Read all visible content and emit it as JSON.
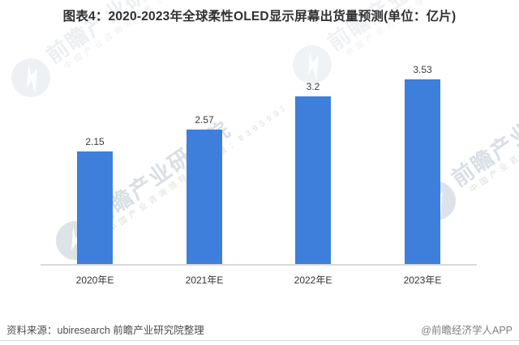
{
  "title": "图表4：2020-2023年全球柔性OLED显示屏幕出货量预测(单位：亿片)",
  "chart_data": {
    "type": "bar",
    "title": "图表4：2020-2023年全球柔性OLED显示屏幕出货量预测(单位：亿片)",
    "unit": "亿片",
    "categories": [
      "2020年E",
      "2021年E",
      "2022年E",
      "2023年E"
    ],
    "values": [
      2.15,
      2.57,
      3.2,
      3.53
    ],
    "value_labels": [
      "2.15",
      "2.57",
      "3.2",
      "3.53"
    ],
    "xlabel": "",
    "ylabel": "",
    "ylim": [
      0,
      4
    ],
    "grid": false,
    "legend": "none",
    "bar_color": "#3D7FDB",
    "axis_color": "#d9d9d9"
  },
  "watermark": {
    "logo": "qianzhan-globe-logo",
    "text_large": "前瞻产业研究院",
    "text_small": "中国产业咨询领导者（股票：839599）"
  },
  "footer": {
    "source": "资料来源：ubiresearch 前瞻产业研究院整理",
    "credit": "@前瞻经济学人APP"
  },
  "colors": {
    "bar": "#3D7FDB",
    "axis": "#d9d9d9",
    "title_text": "#303030",
    "source_text": "#4d4d4d",
    "credit_text": "#7f7f7f",
    "watermark_gray": "#c3ccd5"
  }
}
